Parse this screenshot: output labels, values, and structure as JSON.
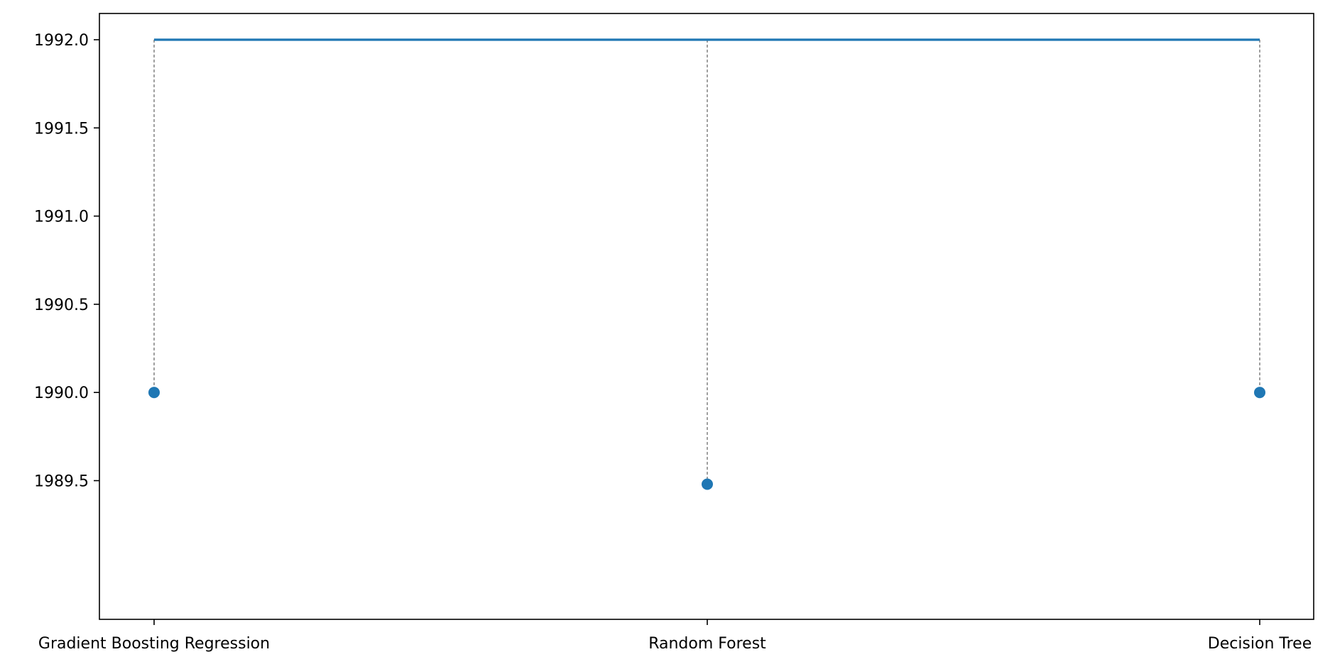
{
  "chart_data": {
    "type": "scatter",
    "categories": [
      "Gradient Boosting Regression",
      "Random Forest",
      "Decision Tree"
    ],
    "series": [
      {
        "values": [
          1990.0,
          1989.48,
          1990.0
        ],
        "marker": "circle",
        "color": "#1f77b4"
      }
    ],
    "reference_line": {
      "value": 1992.0,
      "color": "#1f77b4",
      "style": "solid"
    },
    "connectors": {
      "style": "dashed",
      "color": "#808080"
    },
    "ylim": [
      1989.35,
      1992.12
    ],
    "yticks": [
      1989.5,
      1990.0,
      1990.5,
      1991.0,
      1991.5,
      1992.0
    ],
    "ytick_labels": [
      "1989.5",
      "1990.0",
      "1990.5",
      "1991.0",
      "1991.5",
      "1992.0"
    ],
    "title": "",
    "xlabel": "",
    "ylabel": "",
    "grid": false,
    "legend": "none"
  }
}
